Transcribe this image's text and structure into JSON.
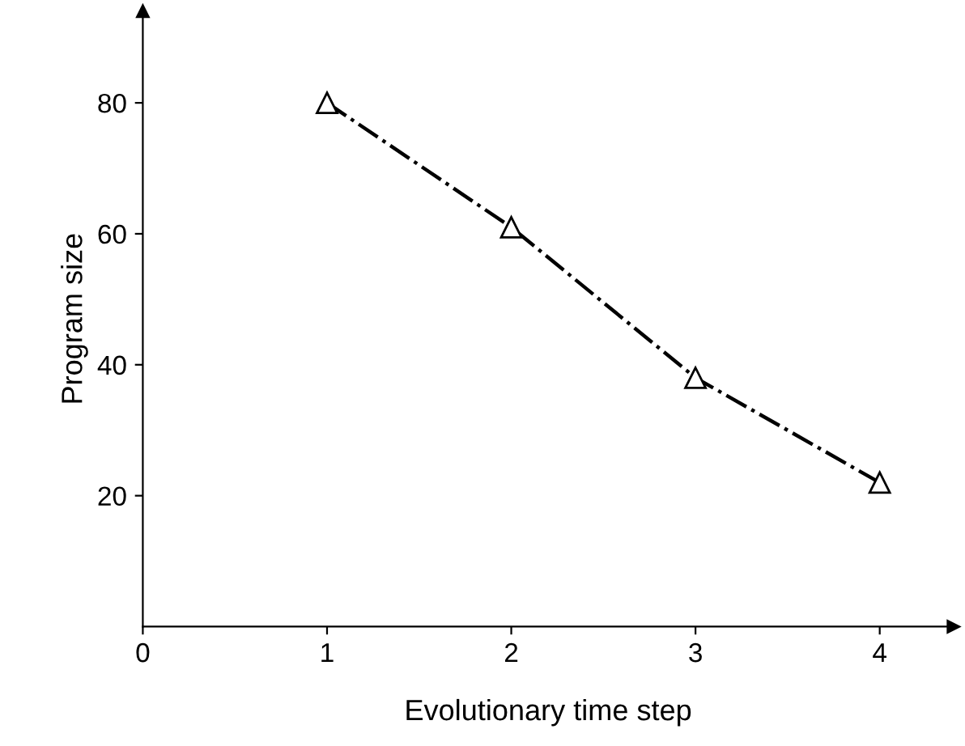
{
  "chart_data": {
    "type": "line",
    "xlabel": "Evolutionary time step",
    "ylabel": "Program size",
    "x": [
      1,
      2,
      3,
      4
    ],
    "series": [
      {
        "color": "#000000",
        "values": [
          80,
          61,
          38,
          22
        ]
      }
    ],
    "marker": "triangle",
    "line_style": "dashdot",
    "xlim": [
      0,
      4.4
    ],
    "ylim": [
      0,
      94
    ],
    "xticks": [
      0,
      1,
      2,
      3,
      4
    ],
    "yticks": [
      20,
      40,
      60,
      80
    ],
    "grid": false,
    "legend": false
  }
}
